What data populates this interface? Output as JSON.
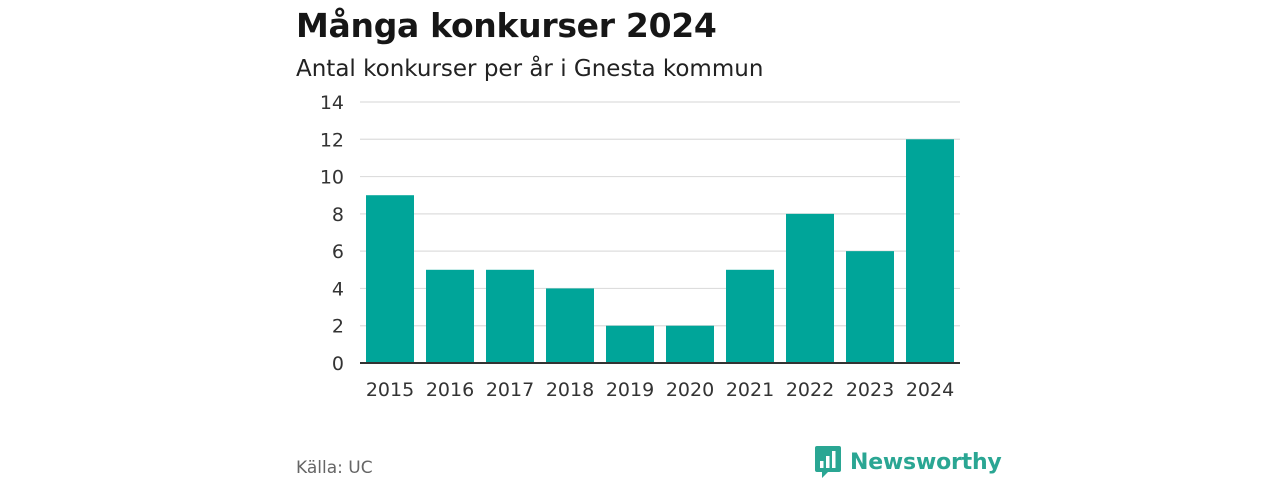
{
  "title": "Många konkurser 2024",
  "subtitle": "Antal konkurser per år i Gnesta kommun",
  "source": "Källa: UC",
  "brand": {
    "name": "Newsworthy",
    "icon": "newsworthy-logo-icon",
    "color": "#2aa693"
  },
  "colors": {
    "bar": "#00a599",
    "grid": "#dddddd",
    "axis": "#333333"
  },
  "chart_data": {
    "type": "bar",
    "categories": [
      "2015",
      "2016",
      "2017",
      "2018",
      "2019",
      "2020",
      "2021",
      "2022",
      "2023",
      "2024"
    ],
    "values": [
      9,
      5,
      5,
      4,
      2,
      2,
      5,
      8,
      6,
      12
    ],
    "title": "Många konkurser 2024",
    "subtitle": "Antal konkurser per år i Gnesta kommun",
    "xlabel": "",
    "ylabel": "",
    "ylim": [
      0,
      14
    ],
    "yticks": [
      "0",
      "2",
      "4",
      "6",
      "8",
      "10",
      "12",
      "14"
    ],
    "grid": true,
    "legend": "none"
  }
}
